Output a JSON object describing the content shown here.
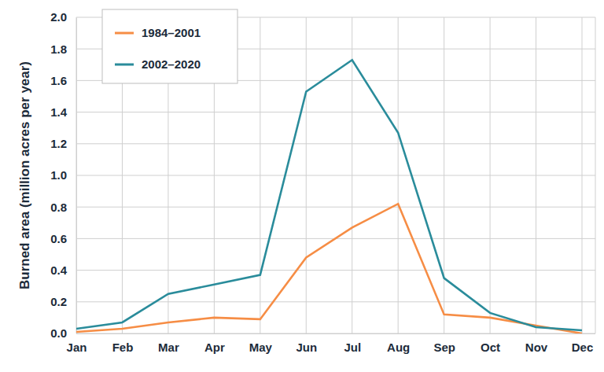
{
  "chart_data": {
    "type": "line",
    "y_label": "Burned area (million acres per year)",
    "categories": [
      "Jan",
      "Feb",
      "Mar",
      "Apr",
      "May",
      "Jun",
      "Jul",
      "Aug",
      "Sep",
      "Oct",
      "Nov",
      "Dec"
    ],
    "series": [
      {
        "name": "1984–2001",
        "color": "#f68d45",
        "values": [
          0.01,
          0.03,
          0.07,
          0.1,
          0.09,
          0.48,
          0.67,
          0.82,
          0.12,
          0.1,
          0.05,
          0.0
        ]
      },
      {
        "name": "2002–2020",
        "color": "#2a8c9b",
        "values": [
          0.03,
          0.07,
          0.25,
          0.31,
          0.37,
          1.53,
          1.73,
          1.27,
          0.35,
          0.13,
          0.04,
          0.02
        ]
      }
    ],
    "ylim": [
      0,
      2
    ],
    "yticks": [
      {
        "value": 0,
        "label": "0.0"
      },
      0.2,
      0.4,
      0.6,
      0.8,
      {
        "value": 1,
        "label": "1.0"
      },
      1.2,
      1.4,
      1.6,
      1.8,
      {
        "value": 2,
        "label": "2.0"
      }
    ],
    "grid": true,
    "legend": "upper left"
  }
}
